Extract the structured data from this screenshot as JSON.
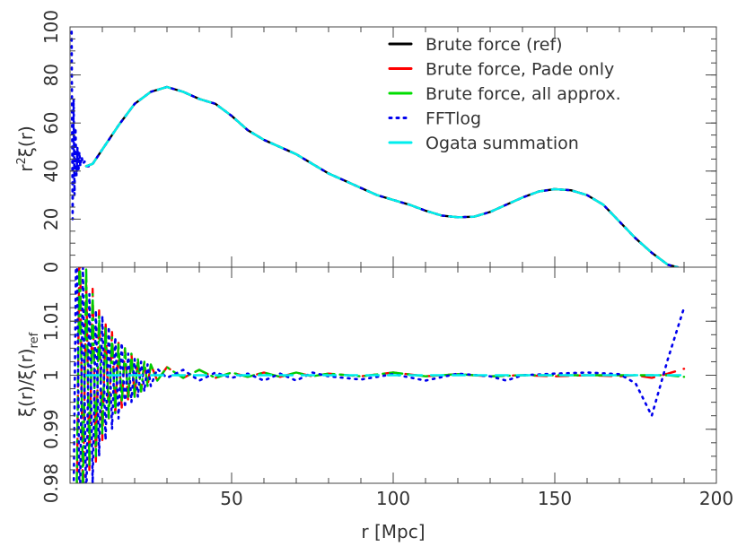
{
  "chart_data": [
    {
      "type": "line",
      "panel": "top",
      "ylabel": "r²ξ(r)",
      "ylabel_parts": {
        "base": "r",
        "sup": "2",
        "rest": "ξ(r)"
      },
      "xlim": [
        0,
        200
      ],
      "ylim": [
        0,
        100
      ],
      "yticks": [
        0,
        20,
        40,
        60,
        80,
        100
      ],
      "grid": false,
      "legend_position": "top-right",
      "series": [
        {
          "name": "Brute force (ref)",
          "color": "#000000",
          "dash": "solid",
          "x": [
            5,
            7,
            10,
            15,
            20,
            25,
            30,
            35,
            40,
            45,
            50,
            55,
            60,
            65,
            70,
            75,
            80,
            85,
            90,
            95,
            100,
            105,
            110,
            115,
            120,
            125,
            130,
            135,
            140,
            145,
            150,
            155,
            160,
            165,
            170,
            175,
            180,
            185,
            188
          ],
          "y": [
            42,
            43,
            49,
            59,
            68,
            73,
            75,
            73,
            70,
            68,
            63,
            57,
            53,
            50,
            47,
            43,
            39,
            36,
            33,
            30,
            28,
            26,
            23.5,
            21.5,
            20.8,
            21,
            23,
            26,
            29,
            31.5,
            32.5,
            32,
            30,
            26,
            19,
            12,
            6,
            1,
            0
          ]
        },
        {
          "name": "Brute force, Pade only",
          "color": "#ff0000",
          "dash": "dashed",
          "x": [
            5,
            7,
            10,
            15,
            20,
            25,
            30,
            35,
            40,
            45,
            50,
            55,
            60,
            65,
            70,
            75,
            80,
            85,
            90,
            95,
            100,
            105,
            110,
            115,
            120,
            125,
            130,
            135,
            140,
            145,
            150,
            155,
            160,
            165,
            170,
            175,
            180,
            185,
            188
          ],
          "y": [
            42,
            43,
            49,
            59,
            68,
            73,
            75,
            73,
            70,
            68,
            63,
            57,
            53,
            50,
            47,
            43,
            39,
            36,
            33,
            30,
            28,
            26,
            23.5,
            21.5,
            20.8,
            21,
            23,
            26,
            29,
            31.5,
            32.5,
            32,
            30,
            26,
            19,
            12,
            6,
            1,
            0
          ]
        },
        {
          "name": "Brute force, all approx.",
          "color": "#00dd00",
          "dash": "dashed",
          "x": [
            5,
            7,
            10,
            15,
            20,
            25,
            30,
            35,
            40,
            45,
            50,
            55,
            60,
            65,
            70,
            75,
            80,
            85,
            90,
            95,
            100,
            105,
            110,
            115,
            120,
            125,
            130,
            135,
            140,
            145,
            150,
            155,
            160,
            165,
            170,
            175,
            180,
            185,
            188
          ],
          "y": [
            42,
            43,
            49,
            59,
            68,
            73,
            75,
            73,
            70,
            68,
            63,
            57,
            53,
            50,
            47,
            43,
            39,
            36,
            33,
            30,
            28,
            26,
            23.5,
            21.5,
            20.8,
            21,
            23,
            26,
            29,
            31.5,
            32.5,
            32,
            30,
            26,
            19,
            12,
            6,
            1,
            0
          ]
        },
        {
          "name": "FFTlog",
          "color": "#0000ee",
          "dash": "dotted",
          "x": [
            0.5,
            0.8,
            1.1,
            1.4,
            1.7,
            2.0,
            2.3,
            2.6,
            2.9,
            3.2,
            3.6,
            4.0,
            4.5,
            5.0,
            6,
            7,
            10,
            15,
            20,
            25,
            30,
            35,
            40,
            45,
            50,
            55,
            60,
            65,
            70,
            75,
            80,
            85,
            90,
            95,
            100,
            105,
            110,
            115,
            120,
            125,
            130,
            135,
            140,
            145,
            150,
            155,
            160,
            165,
            170,
            175,
            180,
            185,
            188
          ],
          "y": [
            98,
            20,
            70,
            30,
            58,
            38,
            50,
            40,
            48,
            42,
            46,
            43,
            44,
            42,
            42,
            43,
            49,
            59,
            68,
            73,
            75,
            73,
            70,
            68,
            63,
            57,
            53,
            50,
            47,
            43,
            39,
            36,
            33,
            30,
            28,
            26,
            23.5,
            21.5,
            20.8,
            21,
            23,
            26,
            29,
            31.5,
            32.5,
            32,
            30,
            26,
            19,
            12,
            6,
            1,
            0
          ]
        },
        {
          "name": "Ogata summation",
          "color": "#00eeee",
          "dash": "dashed",
          "x": [
            5,
            7,
            10,
            15,
            20,
            25,
            30,
            35,
            40,
            45,
            50,
            55,
            60,
            65,
            70,
            75,
            80,
            85,
            90,
            95,
            100,
            105,
            110,
            115,
            120,
            125,
            130,
            135,
            140,
            145,
            150,
            155,
            160,
            165,
            170,
            175,
            180,
            185,
            188
          ],
          "y": [
            42,
            43,
            49,
            59,
            68,
            73,
            75,
            73,
            70,
            68,
            63,
            57,
            53,
            50,
            47,
            43,
            39,
            36,
            33,
            30,
            28,
            26,
            23.5,
            21.5,
            20.8,
            21,
            23,
            26,
            29,
            31.5,
            32.5,
            32,
            30,
            26,
            19,
            12,
            6,
            1,
            0
          ]
        }
      ]
    },
    {
      "type": "line",
      "panel": "bottom",
      "ylabel": "ξ(r)/ξ(r)ref",
      "ylabel_parts": {
        "main": "ξ(r)/ξ(r)",
        "sub": "ref"
      },
      "xlabel": "r [Mpc]",
      "xlim": [
        0,
        200
      ],
      "ylim": [
        0.98,
        1.02
      ],
      "xticks": [
        50,
        100,
        150,
        200
      ],
      "yticks": [
        0.98,
        0.99,
        1,
        1.01
      ],
      "ytick_labels": [
        "0.98",
        "0.99",
        "1",
        "1.01"
      ],
      "grid": false,
      "series": [
        {
          "name": "Brute force, Pade only",
          "color": "#ff0000",
          "dash": "dashed",
          "x": [
            2,
            3,
            4,
            5,
            6,
            7,
            8,
            9,
            10,
            11,
            12,
            13,
            14,
            15,
            16,
            17,
            18,
            19,
            20,
            21,
            22,
            23,
            24,
            25,
            27,
            30,
            35,
            40,
            45,
            50,
            55,
            60,
            65,
            70,
            75,
            80,
            90,
            100,
            110,
            120,
            130,
            140,
            150,
            160,
            170,
            175,
            180,
            185,
            190
          ],
          "y": [
            0.97,
            1.03,
            0.975,
            1.018,
            0.982,
            1.016,
            0.984,
            1.012,
            0.988,
            1.01,
            0.992,
            1.008,
            0.993,
            1.006,
            0.994,
            1.005,
            0.995,
            1.004,
            0.996,
            1.003,
            0.997,
            1.0025,
            0.998,
            1.002,
            0.999,
            1.0015,
            0.9995,
            1.001,
            0.9995,
            1.0005,
            0.9997,
            1.0005,
            0.9997,
            1.0005,
            0.9998,
            1.0003,
            0.9998,
            1.0005,
            0.9998,
            1.0002,
            0.9998,
            1.0,
            0.9998,
            1.0,
            0.9998,
            1.0,
            0.9995,
            1.0003,
            1.0012
          ]
        },
        {
          "name": "Brute force, all approx.",
          "color": "#00cc00",
          "dash": "dashdot",
          "x": [
            2,
            3,
            4,
            5,
            6,
            7,
            8,
            9,
            10,
            11,
            12,
            13,
            14,
            15,
            16,
            17,
            18,
            19,
            20,
            21,
            22,
            23,
            24,
            25,
            27,
            30,
            35,
            40,
            45,
            50,
            55,
            60,
            65,
            70,
            75,
            80,
            90,
            100,
            110,
            120,
            130,
            140,
            150,
            160,
            170,
            175,
            180,
            185,
            190
          ],
          "y": [
            0.975,
            1.025,
            0.978,
            1.02,
            0.983,
            1.015,
            0.985,
            1.011,
            0.989,
            1.009,
            0.992,
            1.007,
            0.993,
            1.006,
            0.995,
            1.005,
            0.996,
            1.004,
            0.996,
            1.003,
            0.997,
            1.0025,
            0.998,
            1.002,
            0.999,
            1.0015,
            0.9995,
            1.001,
            0.9995,
            1.0005,
            0.9997,
            1.0005,
            0.9997,
            1.0005,
            0.9998,
            1.0003,
            0.9998,
            1.0005,
            0.9998,
            1.0002,
            0.9998,
            1.0,
            1.0,
            1.0,
            1.0,
            1.0,
            1.0,
            1.0,
            0.9997
          ]
        },
        {
          "name": "FFTlog",
          "color": "#0000ee",
          "dash": "dotted",
          "x": [
            1,
            2,
            3,
            4,
            5,
            6,
            7,
            8,
            9,
            10,
            11,
            12,
            13,
            14,
            15,
            16,
            17,
            18,
            19,
            20,
            21,
            22,
            23,
            24,
            25,
            27,
            30,
            35,
            40,
            45,
            50,
            55,
            60,
            65,
            70,
            75,
            80,
            90,
            100,
            110,
            120,
            130,
            135,
            140,
            150,
            160,
            170,
            175,
            180,
            185,
            190
          ],
          "y": [
            0.97,
            1.03,
            0.972,
            1.02,
            0.975,
            1.015,
            0.98,
            1.012,
            0.985,
            1.011,
            0.988,
            1.009,
            0.99,
            1.007,
            0.992,
            1.006,
            0.994,
            1.004,
            0.995,
            1.003,
            0.996,
            1.0025,
            0.997,
            1.002,
            0.998,
            1.0012,
            0.9995,
            1.001,
            0.999,
            1.0005,
            0.9995,
            1.0003,
            0.999,
            1.0003,
            0.999,
            1.0005,
            0.9998,
            0.9992,
            1.0002,
            0.999,
            1.0003,
            0.9998,
            0.999,
            1.0,
            1.0003,
            1.0005,
            1.0002,
            0.9985,
            0.9925,
            1.003,
            1.0125
          ]
        },
        {
          "name": "Ogata summation",
          "color": "#00eeee",
          "dash": "dashed",
          "x": [
            5,
            10,
            20,
            40,
            60,
            80,
            100,
            120,
            140,
            160,
            180,
            190
          ],
          "y": [
            1.0,
            1.0,
            1.0,
            1.0,
            1.0,
            1.0,
            1.0,
            1.0,
            1.0,
            1.0,
            1.0,
            1.0
          ]
        }
      ]
    }
  ]
}
